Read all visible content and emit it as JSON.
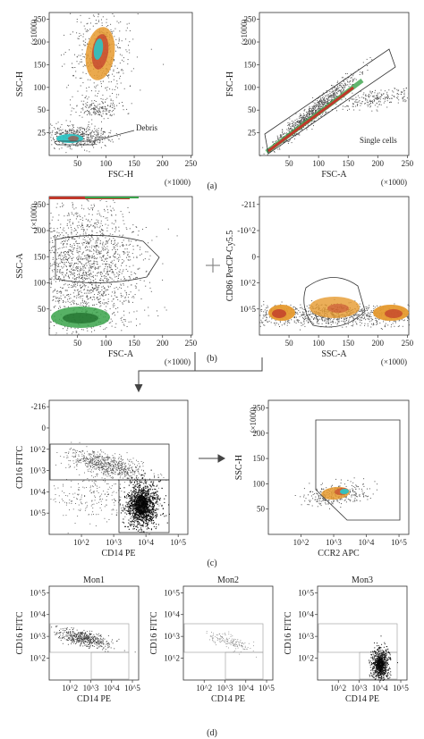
{
  "figure": {
    "panels": [
      "(a)",
      "(b)",
      "(c)",
      "(d)"
    ],
    "scale_note": "(×1000)",
    "colors": {
      "density_low": "#555555",
      "density_mid": "#e69a2e",
      "density_high": "#c0392b",
      "density_core": "#2ec4c4",
      "green": "#3aa34a",
      "gate": "#444444"
    }
  },
  "chart_data": [
    {
      "id": "a1",
      "type": "scatter",
      "panel": "(a)",
      "xlabel": "FSC-H",
      "ylabel": "SSC-H",
      "x_unit": "(×1000)",
      "y_unit": "(×1000)",
      "xticks": [
        "50",
        "100",
        "150",
        "200",
        "250"
      ],
      "yticks": [
        "25",
        "50",
        "100",
        "150",
        "200",
        "250"
      ],
      "yticks_top": "250",
      "annotations": [
        "Debris"
      ],
      "populations": [
        {
          "x": [
            60,
            110
          ],
          "y": [
            150,
            250
          ],
          "density": "high"
        },
        {
          "x": [
            40,
            110
          ],
          "y": [
            55,
            90
          ],
          "density": "low"
        },
        {
          "x": [
            5,
            90
          ],
          "y": [
            10,
            45
          ],
          "density": "core"
        }
      ]
    },
    {
      "id": "a2",
      "type": "scatter",
      "panel": "(a)",
      "xlabel": "FSC-A",
      "ylabel": "FSC-H",
      "x_unit": "(×1000)",
      "y_unit": "(×1000)",
      "xticks": [
        "50",
        "100",
        "150",
        "200",
        "250"
      ],
      "yticks": [
        "25",
        "50",
        "100",
        "150",
        "200",
        "250"
      ],
      "annotations": [
        "Single cells"
      ],
      "gate": "Single cells"
    },
    {
      "id": "b1",
      "type": "scatter",
      "panel": "(b)",
      "xlabel": "FSC-A",
      "ylabel": "SSC-A",
      "x_unit": "(×1000)",
      "y_unit": "(×1000)",
      "xticks": [
        "50",
        "100",
        "150",
        "200",
        "250"
      ],
      "yticks": [
        "50",
        "100",
        "150",
        "200",
        "250"
      ]
    },
    {
      "id": "b2",
      "type": "scatter",
      "panel": "(b)",
      "xlabel": "SSC-A",
      "ylabel": "CD86 PerCP-Cy5.5",
      "x_unit": "(×1000)",
      "xticks": [
        "50",
        "100",
        "150",
        "200",
        "250"
      ],
      "yticks": [
        "10^5",
        "10^2",
        "0",
        "-10^2",
        "-211"
      ]
    },
    {
      "id": "c1",
      "type": "scatter",
      "panel": "(c)",
      "xlabel": "CD14 PE",
      "ylabel": "CD16 FITC",
      "xticks": [
        "10^2",
        "10^3",
        "10^4",
        "10^5"
      ],
      "yticks": [
        "10^5",
        "10^4",
        "10^3",
        "10^2",
        "0",
        "-216"
      ]
    },
    {
      "id": "c2",
      "type": "scatter",
      "panel": "(c)",
      "xlabel": "CCR2 APC",
      "ylabel": "SSC-H",
      "y_unit": "(×1000)",
      "xticks": [
        "10^2",
        "10^3",
        "10^4",
        "10^5"
      ],
      "yticks": [
        "50",
        "100",
        "150",
        "200",
        "250"
      ]
    },
    {
      "id": "d1",
      "type": "scatter",
      "panel": "(d)",
      "title": "Mon1",
      "xlabel": "CD14 PE",
      "ylabel": "CD16 FITC",
      "xticks": [
        "10^2",
        "10^3",
        "10^4",
        "10^5"
      ],
      "yticks": [
        "10^2",
        "10^3",
        "10^4",
        "10^5"
      ]
    },
    {
      "id": "d2",
      "type": "scatter",
      "panel": "(d)",
      "title": "Mon2",
      "xlabel": "CD14 PE",
      "ylabel": "CD16 FITC",
      "xticks": [
        "10^2",
        "10^3",
        "10^4",
        "10^5"
      ],
      "yticks": [
        "10^2",
        "10^3",
        "10^4",
        "10^5"
      ]
    },
    {
      "id": "d3",
      "type": "scatter",
      "panel": "(d)",
      "title": "Mon3",
      "xlabel": "CD14 PE",
      "ylabel": "CD16 FITC",
      "xticks": [
        "10^2",
        "10^3",
        "10^4",
        "10^5"
      ],
      "yticks": [
        "10^2",
        "10^3",
        "10^4",
        "10^5"
      ]
    }
  ]
}
